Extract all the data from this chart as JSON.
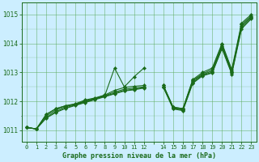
{
  "title": "Graphe pression niveau de la mer (hPa)",
  "bg_color": "#cceeff",
  "grid_color": "#5dab5d",
  "line_color": "#1a6b1a",
  "marker": "D",
  "markersize": 2.2,
  "linewidth": 0.8,
  "xlim": [
    -0.5,
    23.5
  ],
  "ylim": [
    1010.6,
    1015.4
  ],
  "yticks": [
    1011,
    1012,
    1013,
    1014,
    1015
  ],
  "xtick_labels": [
    "0",
    "1",
    "2",
    "3",
    "4",
    "5",
    "6",
    "7",
    "8",
    "9",
    "10",
    "11",
    "12",
    "",
    "14",
    "15",
    "16",
    "17",
    "18",
    "19",
    "20",
    "21",
    "22",
    "23"
  ],
  "lines": [
    [
      1011.1,
      1011.05,
      1011.55,
      1011.75,
      1011.85,
      1011.9,
      1012.0,
      1012.1,
      1012.2,
      1013.15,
      1012.5,
      1012.85,
      1013.15,
      null,
      1012.55,
      1011.8,
      1011.75,
      1012.75,
      1013.0,
      1013.15,
      1014.0,
      1013.1,
      1014.7,
      1015.0
    ],
    [
      1011.1,
      1011.05,
      1011.55,
      1011.75,
      1011.85,
      1011.92,
      1012.05,
      1012.12,
      1012.22,
      1012.38,
      1012.48,
      1012.52,
      1012.55,
      null,
      1012.55,
      1011.8,
      1011.75,
      1012.72,
      1012.95,
      1013.1,
      1013.95,
      1013.05,
      1014.65,
      1014.95
    ],
    [
      1011.1,
      1011.05,
      1011.5,
      1011.7,
      1011.82,
      1011.9,
      1012.02,
      1012.1,
      1012.2,
      1012.32,
      1012.42,
      1012.46,
      1012.5,
      null,
      1012.52,
      1011.78,
      1011.73,
      1012.7,
      1012.92,
      1013.05,
      1013.9,
      1013.02,
      1014.6,
      1014.92
    ],
    [
      1011.1,
      1011.05,
      1011.45,
      1011.65,
      1011.78,
      1011.88,
      1011.98,
      1012.08,
      1012.18,
      1012.28,
      1012.38,
      1012.42,
      1012.48,
      null,
      1012.5,
      1011.76,
      1011.7,
      1012.65,
      1012.9,
      1013.0,
      1013.85,
      1012.97,
      1014.55,
      1014.88
    ],
    [
      1011.1,
      1011.05,
      1011.42,
      1011.62,
      1011.76,
      1011.86,
      1011.96,
      1012.06,
      1012.16,
      1012.26,
      1012.36,
      1012.4,
      1012.46,
      null,
      1012.48,
      1011.74,
      1011.68,
      1012.62,
      1012.88,
      1012.98,
      1013.82,
      1012.94,
      1014.5,
      1014.85
    ]
  ]
}
